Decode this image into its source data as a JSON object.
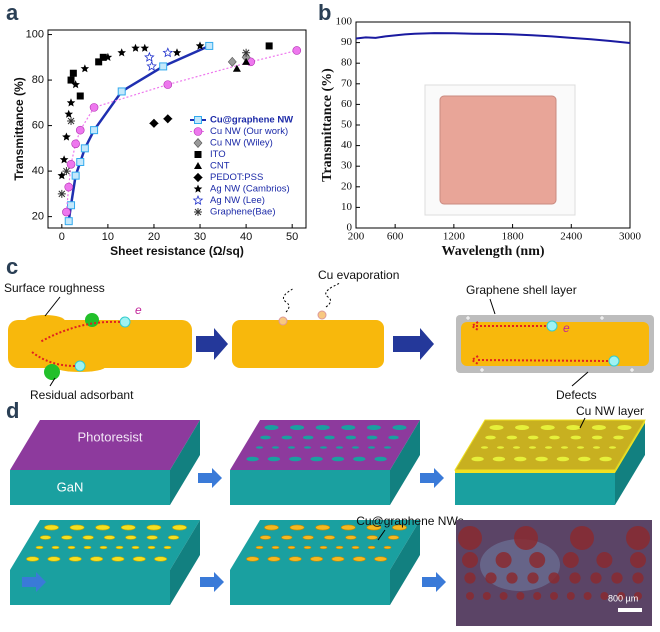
{
  "panel_labels": [
    "a",
    "b",
    "c",
    "d"
  ],
  "chart_data": [
    {
      "type": "scatter",
      "xlabel": "Sheet resistance (Ω/sq)",
      "ylabel": "Transmittance  (%)",
      "xlim": [
        -3,
        53
      ],
      "ylim": [
        15,
        102
      ],
      "xticks": [
        0,
        10,
        20,
        30,
        40,
        50
      ],
      "yticks": [
        20,
        40,
        60,
        80,
        100
      ],
      "legend": "lower right",
      "series": [
        {
          "name": "Cu@graphene NW",
          "color": "#33aaee",
          "marker": "square-open",
          "line": "solid",
          "line_color": "#1f2fb0",
          "x": [
            1.5,
            2,
            3,
            4,
            5,
            7,
            13,
            22,
            32
          ],
          "values": [
            18,
            25,
            38,
            44,
            50,
            58,
            75,
            86,
            95
          ]
        },
        {
          "name": "Cu NW (Our work)",
          "color": "#ee77ee",
          "marker": "circle",
          "line": "dotted",
          "line_color": "#ee77ee",
          "x": [
            1,
            1.5,
            2,
            3,
            4,
            7,
            23,
            41,
            51
          ],
          "values": [
            22,
            33,
            43,
            52,
            58,
            68,
            78,
            88,
            93
          ]
        },
        {
          "name": "Cu NW (Wiley)",
          "color": "#999999",
          "marker": "diamond",
          "x": [
            37,
            40
          ],
          "values": [
            88,
            90
          ]
        },
        {
          "name": "ITO",
          "color": "#000000",
          "marker": "square",
          "x": [
            2,
            2.5,
            4,
            8,
            9,
            45
          ],
          "values": [
            80,
            83,
            73,
            88,
            90,
            95
          ]
        },
        {
          "name": "CNT",
          "color": "#000000",
          "marker": "triangle",
          "x": [
            38,
            40
          ],
          "values": [
            85,
            88
          ]
        },
        {
          "name": "PEDOT:PSS",
          "color": "#000000",
          "marker": "half-diamond",
          "x": [
            20,
            23
          ],
          "values": [
            61,
            63
          ]
        },
        {
          "name": "Ag NW (Cambrios)",
          "color": "#000000",
          "marker": "star",
          "x": [
            0,
            0.5,
            1,
            1.5,
            2,
            3,
            5,
            10,
            13,
            16,
            18,
            25,
            30
          ],
          "values": [
            38,
            45,
            55,
            65,
            70,
            78,
            85,
            90,
            92,
            94,
            94,
            92,
            95
          ]
        },
        {
          "name": "Ag NW (Lee)",
          "color": "#2233cc",
          "marker": "star-open",
          "x": [
            19,
            19.5,
            23
          ],
          "values": [
            90,
            86,
            92
          ]
        },
        {
          "name": "Graphene(Bae)",
          "color": "#333333",
          "marker": "asterisk",
          "x": [
            0,
            1,
            2,
            40
          ],
          "values": [
            30,
            40,
            62,
            92
          ]
        }
      ]
    },
    {
      "type": "line",
      "xlabel": "Wavelength (nm)",
      "ylabel": "Transmittance (%)",
      "xlim": [
        200,
        3000
      ],
      "ylim": [
        0,
        100
      ],
      "xticks": [
        200,
        600,
        1200,
        1800,
        2400,
        3000
      ],
      "yticks": [
        0,
        10,
        20,
        30,
        40,
        50,
        60,
        70,
        80,
        90,
        100
      ],
      "color": "#1a1aa0",
      "x": [
        200,
        300,
        400,
        500,
        600,
        700,
        800,
        1000,
        1200,
        1400,
        1600,
        1800,
        2000,
        2200,
        2400,
        2600,
        2800,
        3000
      ],
      "values": [
        92,
        92.5,
        92.3,
        93,
        93.5,
        94,
        94.3,
        94.6,
        94.5,
        94.3,
        94.2,
        94,
        93.6,
        93,
        92.3,
        91.6,
        90.8,
        89.8
      ]
    }
  ],
  "panel_c": {
    "surface_roughness": "Surface roughness",
    "electron_1": "e",
    "residual": "Residual adsorbant",
    "evaporation": "Cu evaporation",
    "shell": "Graphene shell layer",
    "electron_2": "e",
    "defects": "Defects"
  },
  "panel_d": {
    "photoresist": "Photoresist",
    "gan": "GaN",
    "cu_nw_layer": "Cu NW layer",
    "cu_graphene": "Cu@graphene NWs",
    "scale_bar": "800 µm"
  }
}
